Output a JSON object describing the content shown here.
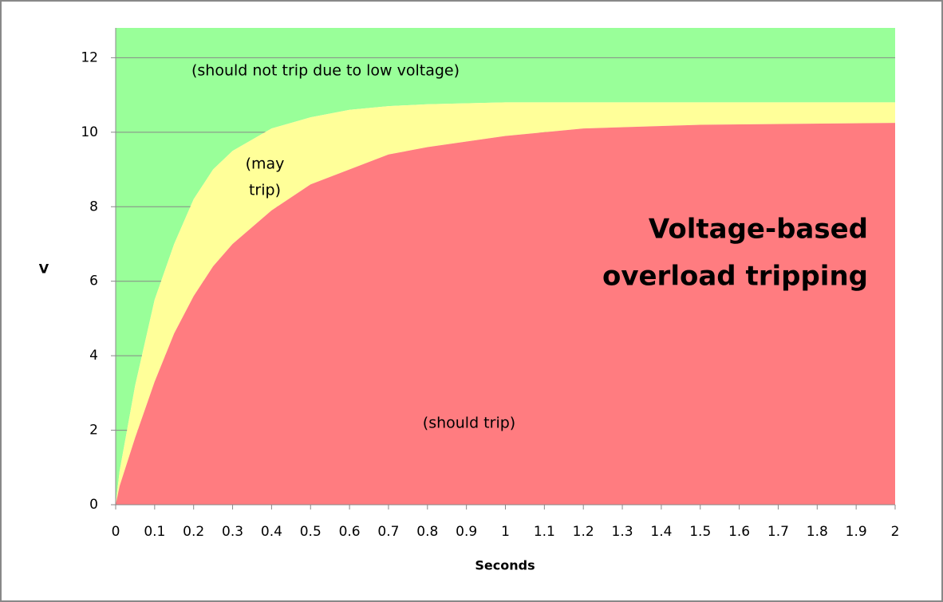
{
  "chart_data": {
    "type": "stacked_area",
    "x_label": "Seconds",
    "y_label": "V",
    "x": [
      0,
      0.01,
      0.05,
      0.1,
      0.15,
      0.2,
      0.25,
      0.3,
      0.4,
      0.5,
      0.6,
      0.7,
      0.8,
      1.0,
      1.2,
      1.5,
      2.0
    ],
    "series": [
      {
        "name": "should trip",
        "color": "#ff7c80",
        "values": [
          0,
          0.5,
          1.8,
          3.3,
          4.6,
          5.6,
          6.4,
          7.0,
          7.9,
          8.6,
          9.0,
          9.4,
          9.6,
          9.9,
          10.1,
          10.2,
          10.25
        ]
      },
      {
        "name": "may trip",
        "color": "#ffff99",
        "values": [
          0,
          0.4,
          1.4,
          2.2,
          2.4,
          2.6,
          2.6,
          2.5,
          2.2,
          1.8,
          1.6,
          1.3,
          1.15,
          0.9,
          0.7,
          0.6,
          0.55
        ]
      },
      {
        "name": "should not trip",
        "color": "#99ff99",
        "values": [
          12.8,
          11.9,
          9.6,
          7.3,
          5.8,
          4.6,
          3.8,
          3.3,
          2.7,
          2.4,
          2.2,
          2.1,
          2.05,
          2.0,
          2.0,
          2.0,
          2.0
        ]
      }
    ],
    "xlim": [
      0,
      2
    ],
    "xticks": [
      0,
      0.1,
      0.2,
      0.3,
      0.4,
      0.5,
      0.6,
      0.7,
      0.8,
      0.9,
      1,
      1.1,
      1.2,
      1.3,
      1.4,
      1.5,
      1.6,
      1.7,
      1.8,
      1.9,
      2
    ],
    "ylim": [
      0,
      12.8
    ],
    "yticks": [
      0,
      2,
      4,
      6,
      8,
      10,
      12
    ],
    "grid": true,
    "annotations": [
      {
        "lines": [
          "(should not trip due to low voltage)"
        ]
      },
      {
        "lines": [
          "(may",
          "trip)"
        ]
      },
      {
        "lines": [
          "Voltage-based",
          "overload tripping"
        ]
      },
      {
        "lines": [
          "(should trip)"
        ]
      }
    ]
  }
}
